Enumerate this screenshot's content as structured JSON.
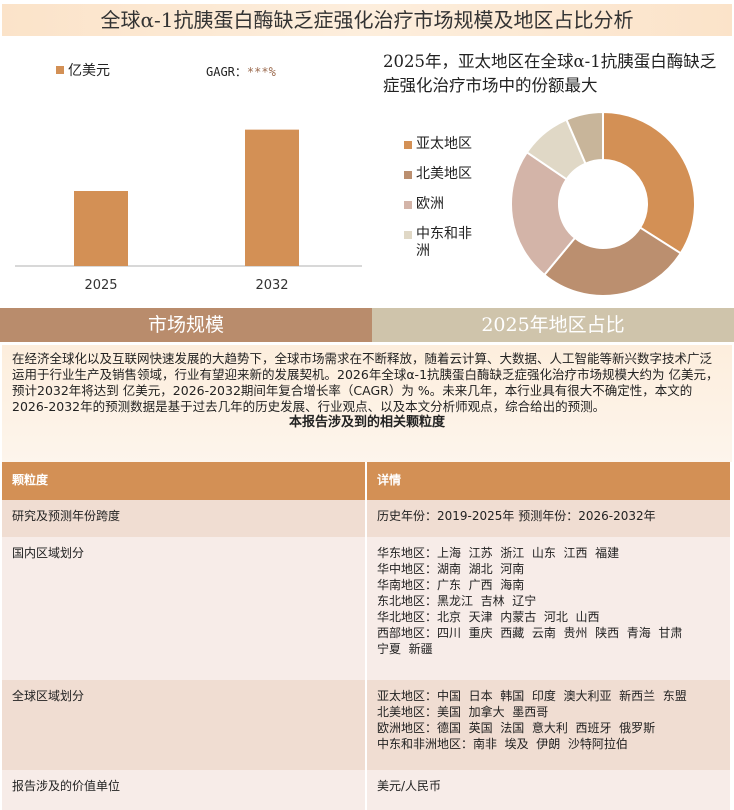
{
  "title": "全球α-1抗胰蛋白酶缺乏症强化治疗市场规模及地区占比分析",
  "bar_chart": {
    "legend": "亿美元",
    "cagr_label": "GAGR：",
    "cagr_value": "***%",
    "color": "#d39055"
  },
  "pie_title": "2025年，亚太地区在全球α-1抗胰蛋白酶缺乏症强化治疗市场中的份额最大",
  "chart_data": [
    {
      "type": "bar",
      "categories": [
        "2025",
        "2032"
      ],
      "series": [
        {
          "name": "亿美元",
          "values": [
            55,
            100
          ]
        }
      ],
      "ylim": [
        0,
        110
      ],
      "grid": false,
      "legend": "top-left"
    },
    {
      "type": "pie",
      "donut": true,
      "labels": [
        "亚太地区",
        "北美地区",
        "欧洲",
        "中东和非洲",
        ""
      ],
      "values": [
        34,
        27,
        23.5,
        9,
        6.5
      ],
      "colors": [
        "#d39055",
        "#bb8f6f",
        "#d3b4a8",
        "#e0d8c6",
        "#c8b59a"
      ],
      "legend": "left"
    }
  ],
  "tabs": {
    "left": "市场规模",
    "right": "2025年地区占比",
    "left_color": "#b98c6c",
    "right_color": "#cfc4ab"
  },
  "paragraph": "在经济全球化以及互联网快速发展的大趋势下，全球市场需求在不断释放，随着云计算、大数据、人工智能等新兴数字技术广泛运用于行业生产及销售领域，行业有望迎来新的发展契机。2026年全球α-1抗胰蛋白酶缺乏症强化治疗市场规模大约为 亿美元，预计2032年将达到 亿美元，2026-2032期间年复合增长率（CAGR）为 %。未来几年，本行业具有很大不确定性，本文的2026-2032年的预测数据是基于过去几年的历史发展、行业观点、以及本文分析师观点，综合给出的预测。",
  "table_title": "本报告涉及到的相关颗粒度",
  "table": {
    "headers": [
      "颗粒度",
      "详情"
    ],
    "rows": [
      {
        "name": "研究及预测年份跨度",
        "lines": [
          "历史年份：2019-2025年 预测年份：2026-2032年"
        ]
      },
      {
        "name": "国内区域划分",
        "lines": [
          "华东地区：上海  江苏  浙江  山东  江西  福建",
          "华中地区：湖南  湖北  河南",
          "华南地区：广东  广西  海南",
          "东北地区：黑龙江  吉林  辽宁",
          "华北地区：北京  天津  内蒙古  河北  山西",
          "西部地区：四川  重庆  西藏  云南  贵州  陕西  青海  甘肃",
          "宁夏  新疆"
        ]
      },
      {
        "name": "全球区域划分",
        "lines": [
          "亚太地区：中国  日本  韩国  印度  澳大利亚  新西兰  东盟",
          "北美地区：美国  加拿大  墨西哥",
          "欧洲地区：德国  英国  法国  意大利  西班牙  俄罗斯",
          "中东和非洲地区：南非  埃及  伊朗  沙特阿拉伯"
        ]
      },
      {
        "name": "报告涉及的价值单位",
        "lines": [
          "美元/人民币"
        ]
      }
    ]
  }
}
